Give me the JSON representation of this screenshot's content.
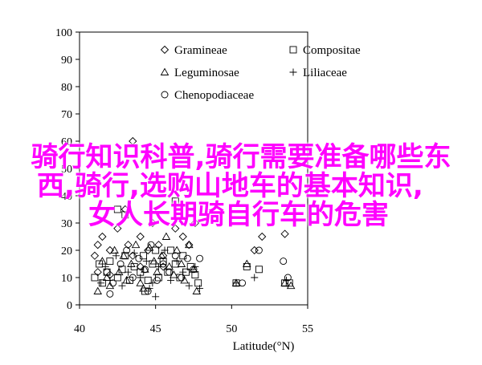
{
  "chart_data": {
    "type": "scatter",
    "title": "",
    "xlabel": "Latitude(°N)",
    "ylabel": "",
    "xlim": [
      40,
      55
    ],
    "ylim": [
      0,
      100
    ],
    "xticks": [
      40,
      45,
      50,
      55
    ],
    "yticks": [
      0,
      10,
      20,
      30,
      40,
      50,
      60,
      70,
      80,
      90,
      100
    ],
    "grid": false,
    "legend_position": "top-center",
    "series": [
      {
        "name": "Gramineae",
        "marker": "diamond",
        "points": [
          [
            41.0,
            18
          ],
          [
            41.2,
            22
          ],
          [
            41.5,
            25
          ],
          [
            42.0,
            20
          ],
          [
            42.5,
            28
          ],
          [
            43.0,
            35
          ],
          [
            43.2,
            22
          ],
          [
            43.5,
            18
          ],
          [
            44.0,
            25
          ],
          [
            44.5,
            20
          ],
          [
            44.8,
            30
          ],
          [
            45.2,
            22
          ],
          [
            45.5,
            18
          ],
          [
            46.3,
            28
          ],
          [
            46.8,
            25
          ],
          [
            47.2,
            22
          ],
          [
            47.6,
            30
          ],
          [
            51.5,
            20
          ],
          [
            52.0,
            25
          ],
          [
            53.5,
            26
          ],
          [
            43.5,
            60
          ],
          [
            41.2,
            12
          ],
          [
            42.0,
            11
          ],
          [
            44.0,
            14
          ],
          [
            45.5,
            14
          ]
        ]
      },
      {
        "name": "Compositae",
        "marker": "square",
        "points": [
          [
            41.0,
            10
          ],
          [
            41.3,
            15
          ],
          [
            41.5,
            8
          ],
          [
            41.8,
            12
          ],
          [
            42.0,
            16
          ],
          [
            42.5,
            10
          ],
          [
            42.8,
            13
          ],
          [
            43.0,
            18
          ],
          [
            43.3,
            9
          ],
          [
            43.6,
            14
          ],
          [
            44.0,
            12
          ],
          [
            44.2,
            18
          ],
          [
            44.5,
            9
          ],
          [
            44.8,
            15
          ],
          [
            45.0,
            20
          ],
          [
            45.2,
            10
          ],
          [
            45.5,
            16
          ],
          [
            45.8,
            12
          ],
          [
            46.0,
            20
          ],
          [
            46.3,
            15
          ],
          [
            46.6,
            10
          ],
          [
            46.8,
            18
          ],
          [
            47.0,
            12
          ],
          [
            47.3,
            14
          ],
          [
            47.6,
            11
          ],
          [
            47.8,
            8
          ],
          [
            50.3,
            8
          ],
          [
            51.0,
            14
          ],
          [
            51.8,
            13
          ],
          [
            53.5,
            8
          ],
          [
            53.8,
            8
          ],
          [
            42.5,
            35
          ],
          [
            46.3,
            38
          ],
          [
            43.0,
            33
          ],
          [
            44.3,
            5
          ]
        ]
      },
      {
        "name": "Leguminosae",
        "marker": "triangle",
        "points": [
          [
            41.2,
            5
          ],
          [
            41.5,
            16
          ],
          [
            41.8,
            10
          ],
          [
            42.0,
            7
          ],
          [
            42.3,
            20
          ],
          [
            42.6,
            12
          ],
          [
            42.9,
            18
          ],
          [
            43.1,
            9
          ],
          [
            43.4,
            15
          ],
          [
            43.7,
            22
          ],
          [
            44.0,
            8
          ],
          [
            44.3,
            13
          ],
          [
            44.6,
            21
          ],
          [
            44.9,
            16
          ],
          [
            45.1,
            12
          ],
          [
            45.4,
            18
          ],
          [
            45.7,
            25
          ],
          [
            45.9,
            14
          ],
          [
            46.2,
            11
          ],
          [
            46.4,
            20
          ],
          [
            46.7,
            15
          ],
          [
            46.9,
            9
          ],
          [
            47.2,
            22
          ],
          [
            47.5,
            13
          ],
          [
            47.7,
            5
          ],
          [
            50.3,
            8
          ],
          [
            51.0,
            15
          ],
          [
            53.5,
            8
          ],
          [
            53.9,
            7
          ],
          [
            44.2,
            6
          ]
        ]
      },
      {
        "name": "Liliaceae",
        "marker": "plus",
        "points": [
          [
            41.4,
            8
          ],
          [
            41.7,
            14
          ],
          [
            42.0,
            9
          ],
          [
            42.4,
            18
          ],
          [
            42.8,
            7
          ],
          [
            43.2,
            12
          ],
          [
            43.6,
            19
          ],
          [
            44.0,
            10
          ],
          [
            44.4,
            16
          ],
          [
            44.8,
            8
          ],
          [
            45.2,
            14
          ],
          [
            45.6,
            20
          ],
          [
            46.0,
            9
          ],
          [
            46.4,
            16
          ],
          [
            46.8,
            12
          ],
          [
            47.2,
            7
          ],
          [
            47.6,
            14
          ],
          [
            50.3,
            8
          ],
          [
            51.5,
            10
          ],
          [
            53.6,
            9
          ],
          [
            44.6,
            6
          ],
          [
            45.0,
            3
          ],
          [
            47.9,
            6
          ]
        ]
      },
      {
        "name": "Chenopodiaceae",
        "marker": "circle",
        "points": [
          [
            41.8,
            12
          ],
          [
            42.2,
            8
          ],
          [
            42.7,
            15
          ],
          [
            43.1,
            20
          ],
          [
            43.5,
            10
          ],
          [
            43.9,
            17
          ],
          [
            44.3,
            13
          ],
          [
            44.7,
            22
          ],
          [
            45.1,
            9
          ],
          [
            45.5,
            15
          ],
          [
            45.9,
            12
          ],
          [
            46.3,
            18
          ],
          [
            46.7,
            10
          ],
          [
            47.1,
            17
          ],
          [
            47.5,
            13
          ],
          [
            47.9,
            17
          ],
          [
            50.7,
            8
          ],
          [
            51.8,
            20
          ],
          [
            53.4,
            16
          ],
          [
            53.7,
            10
          ],
          [
            42.0,
            4
          ],
          [
            44.5,
            5
          ]
        ]
      }
    ]
  },
  "overlay": {
    "line1": "骑行知识科普,骑行需要准备哪些东",
    "line2": "西,骑行,选购山地车的基本知识,",
    "line3": "女人长期骑自行车的危害"
  }
}
